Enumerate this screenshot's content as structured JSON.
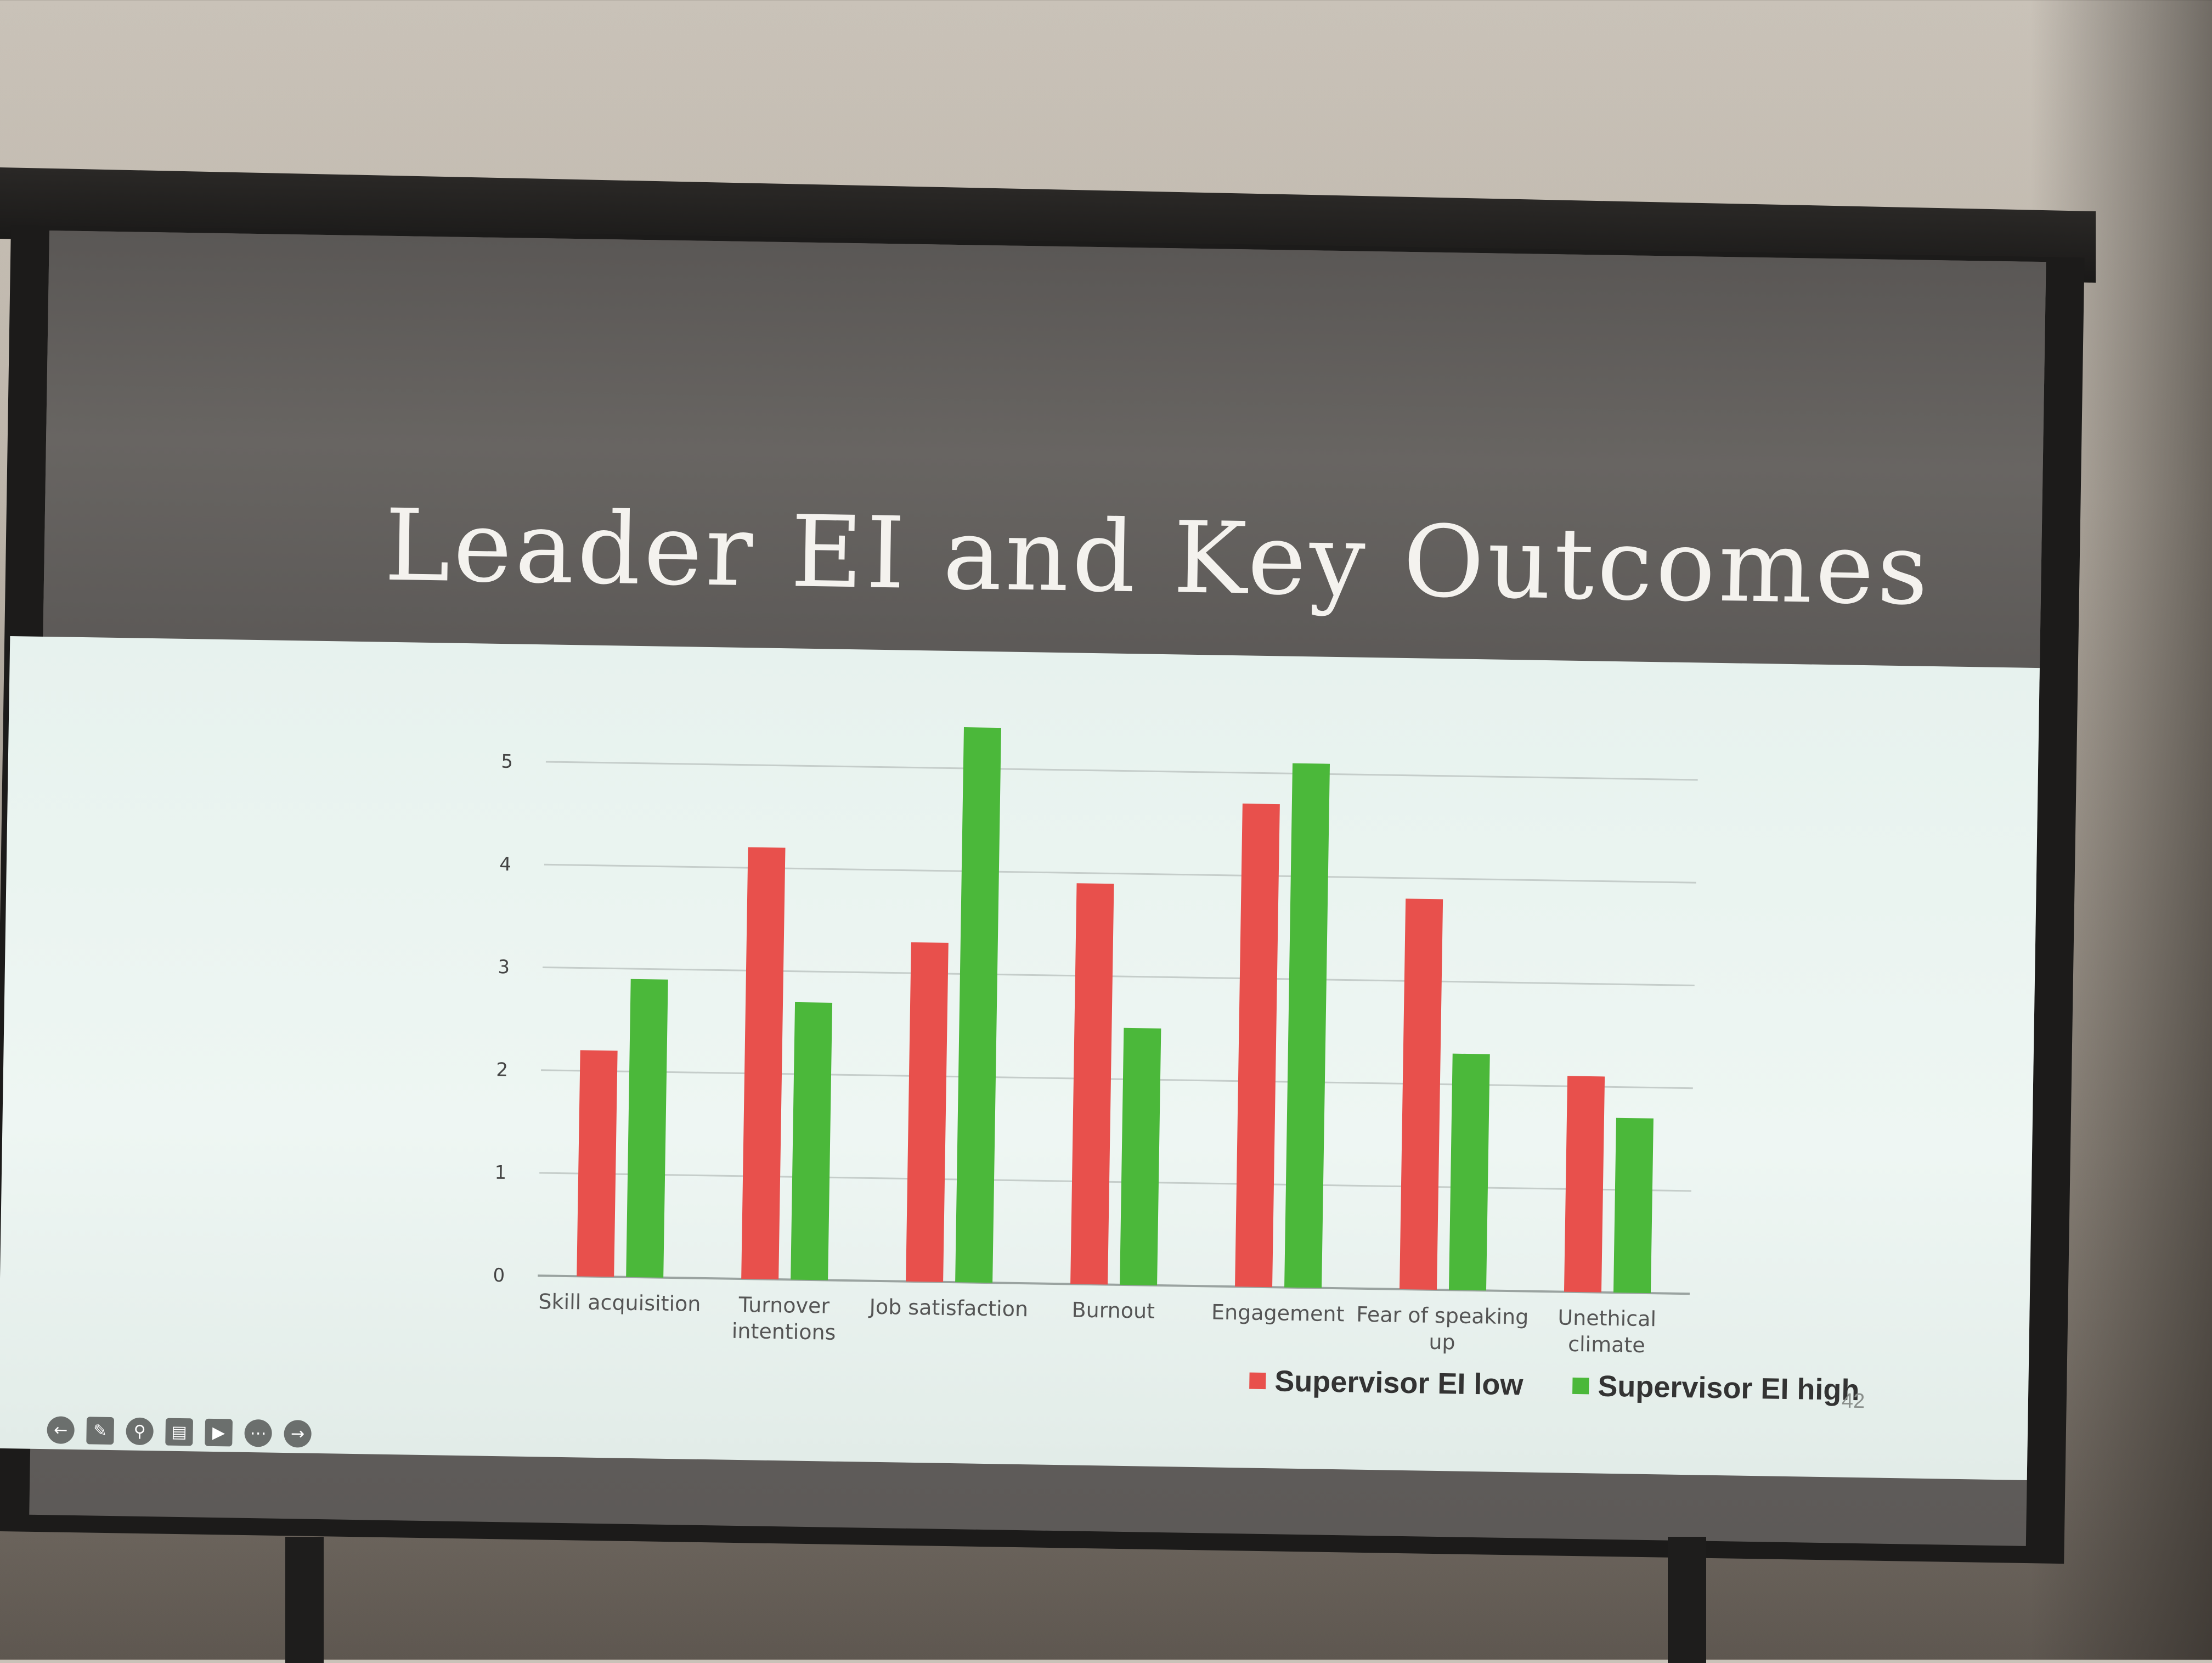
{
  "slide": {
    "title": "Leader EI and Key Outcomes",
    "page_number": "42"
  },
  "toolbar": {
    "icons": [
      "back-icon",
      "pen-icon",
      "zoom-icon",
      "subtitles-icon",
      "video-icon",
      "more-icon",
      "forward-icon"
    ]
  },
  "colors": {
    "low": "#e8504c",
    "high": "#4bb83a"
  },
  "chart_data": {
    "type": "bar",
    "categories": [
      [
        "Skill acquisition"
      ],
      [
        "Turnover",
        "intentions"
      ],
      [
        "Job satisfaction"
      ],
      [
        "Burnout"
      ],
      [
        "Engagement"
      ],
      [
        "Fear of speaking",
        "up"
      ],
      [
        "Unethical",
        "climate"
      ]
    ],
    "series": [
      {
        "name": "Supervisor EI low",
        "values": [
          2.2,
          4.2,
          3.3,
          3.9,
          4.7,
          3.8,
          2.1
        ]
      },
      {
        "name": "Supervisor EI high",
        "values": [
          2.9,
          2.7,
          5.4,
          2.5,
          5.1,
          2.3,
          1.7
        ]
      }
    ],
    "yticks": [
      "0",
      "1",
      "2",
      "3",
      "4",
      "5"
    ],
    "ylim": [
      0,
      5.5
    ],
    "grid": true,
    "legend": "bottom-right"
  }
}
